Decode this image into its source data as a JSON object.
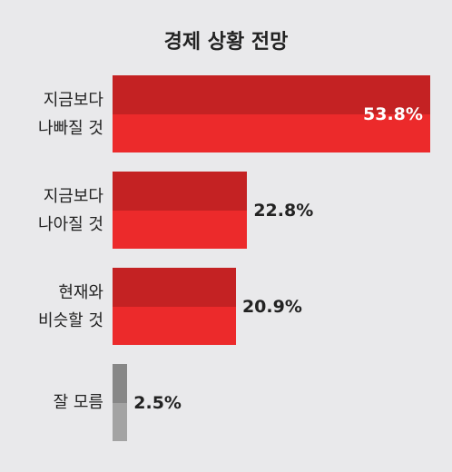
{
  "chart_data": {
    "type": "bar",
    "orientation": "horizontal",
    "title": "경제 상황 전망",
    "categories": [
      "지금보다\n나빠질 것",
      "지금보다\n나아질 것",
      "현재와\n비슷할 것",
      "잘 모름"
    ],
    "values": [
      53.8,
      22.8,
      20.9,
      2.5
    ],
    "value_labels": [
      "53.8%",
      "22.8%",
      "20.9%",
      "2.5%"
    ],
    "colors": [
      "#ec2a2b",
      "#ec2a2b",
      "#ec2a2b",
      "#a3a3a3"
    ]
  }
}
